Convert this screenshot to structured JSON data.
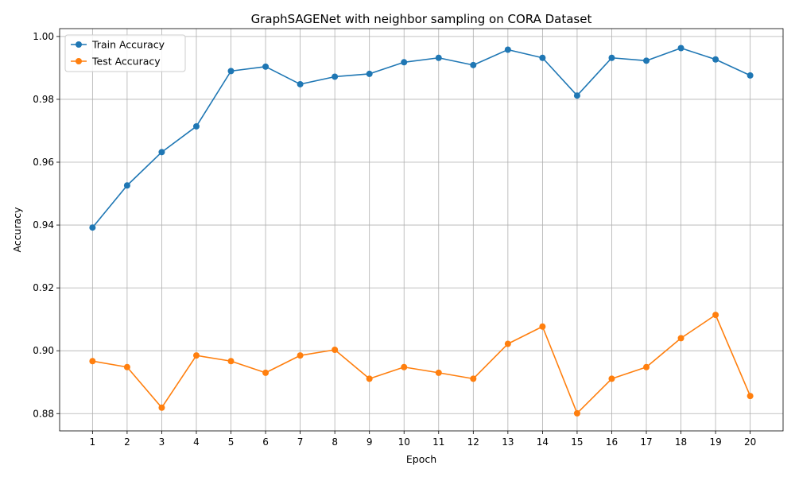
{
  "chart_data": {
    "type": "line",
    "title": "GraphSAGENet with neighbor sampling on CORA Dataset",
    "xlabel": "Epoch",
    "ylabel": "Accuracy",
    "x": [
      1,
      2,
      3,
      4,
      5,
      6,
      7,
      8,
      9,
      10,
      11,
      12,
      13,
      14,
      15,
      16,
      17,
      18,
      19,
      20
    ],
    "xticks": [
      "1",
      "2",
      "3",
      "4",
      "5",
      "6",
      "7",
      "8",
      "9",
      "10",
      "11",
      "12",
      "13",
      "14",
      "15",
      "16",
      "17",
      "18",
      "19",
      "20"
    ],
    "yticks": [
      "0.88",
      "0.90",
      "0.92",
      "0.94",
      "0.96",
      "0.98",
      "1.00"
    ],
    "ylim": [
      0.8745,
      1.0025
    ],
    "grid": true,
    "legend_position": "top-left",
    "series": [
      {
        "name": "Train Accuracy",
        "color": "#1f77b4",
        "values": [
          0.9392,
          0.9526,
          0.9632,
          0.9714,
          0.989,
          0.9904,
          0.9848,
          0.9872,
          0.9881,
          0.9918,
          0.9932,
          0.9909,
          0.9958,
          0.9932,
          0.9812,
          0.9932,
          0.9923,
          0.9963,
          0.9927,
          0.9876
        ]
      },
      {
        "name": "Test Accuracy",
        "color": "#ff7f0e",
        "values": [
          0.8967,
          0.8948,
          0.8819,
          0.8985,
          0.8967,
          0.893,
          0.8985,
          0.9003,
          0.8911,
          0.8948,
          0.893,
          0.8911,
          0.9022,
          0.9077,
          0.8801,
          0.8911,
          0.8948,
          0.904,
          0.9114,
          0.8856
        ]
      }
    ]
  }
}
